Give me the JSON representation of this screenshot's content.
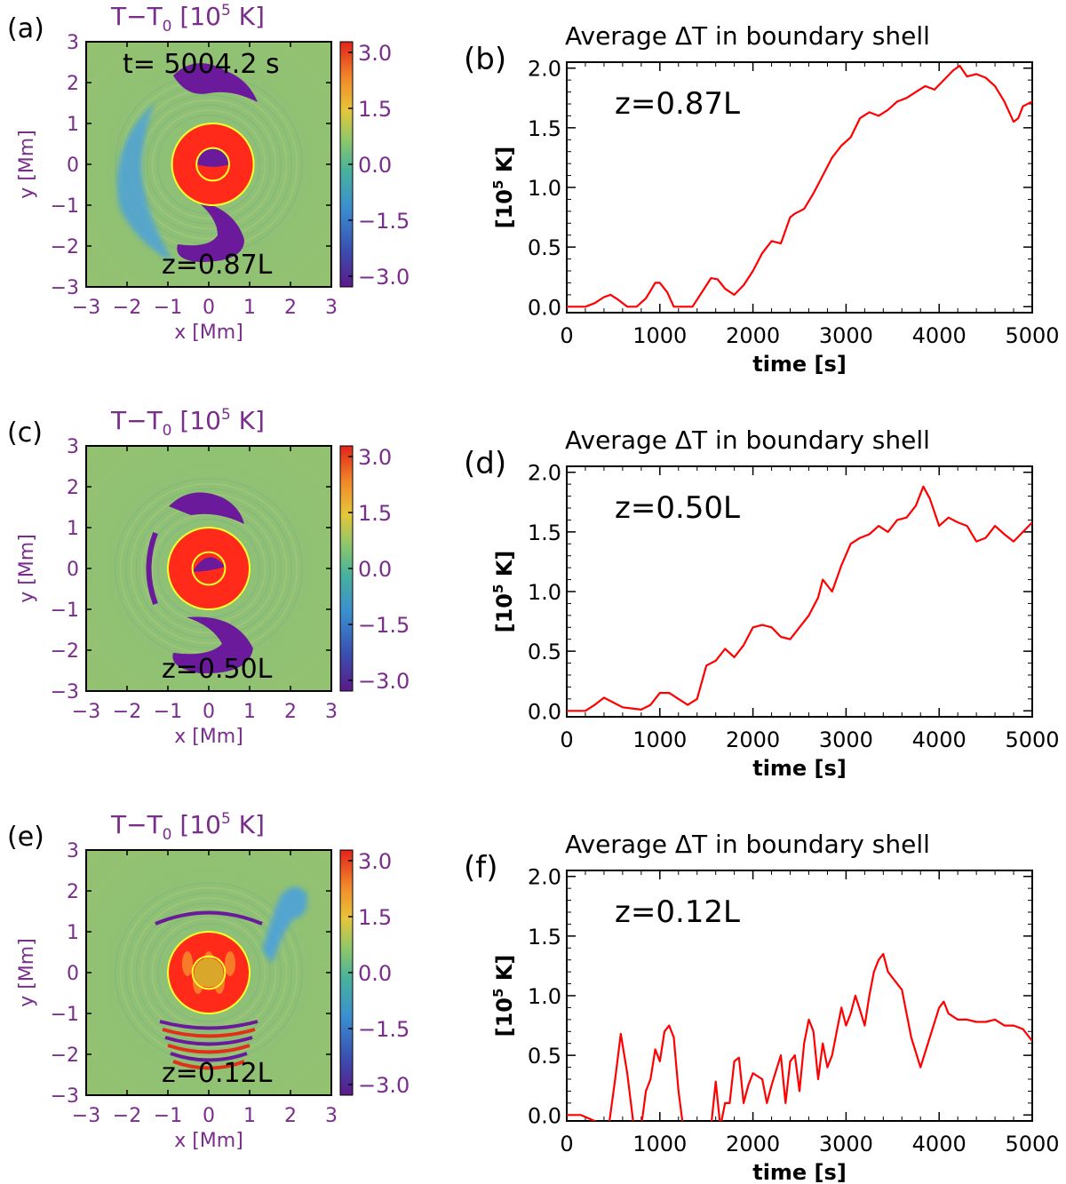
{
  "colors": {
    "axis_label": "#7a2e8c",
    "line": "#ff0000",
    "circle": "#ffff2a",
    "background_field": "#8fbf6f",
    "hot": "#ff2a1a",
    "cold": "#6a1a9a",
    "blue_feature": "#4aa0e0"
  },
  "chart_data": [
    {
      "panel": "(a)",
      "type": "heatmap",
      "title": "T−T₀ [10⁵ K]",
      "title_main": "T−T",
      "title_sub": "0",
      "title_unit_open": "[10",
      "title_unit_sup": "5",
      "title_unit_close": "K]",
      "time_label": "t=  5004.2 s",
      "z_label": "z=0.87L",
      "xlabel": "x [Mm]",
      "ylabel": "y [Mm]",
      "xlim": [
        -3,
        3
      ],
      "ylim": [
        -3,
        3
      ],
      "xticks": [
        -3,
        -2,
        -1,
        0,
        1,
        2,
        3
      ],
      "yticks": [
        -3,
        -2,
        -1,
        0,
        1,
        2,
        3
      ],
      "colorbar": {
        "range": [
          -3.0,
          3.0
        ],
        "ticks": [
          "3.0",
          "1.5",
          "0.0",
          "−1.5",
          "−3.0"
        ]
      },
      "circles_radius_mm": [
        1.0,
        0.4
      ],
      "circle_center_mm": [
        0.1,
        0.0
      ]
    },
    {
      "panel": "(b)",
      "type": "line",
      "title": "Average ΔT in boundary shell",
      "annotation": "z=0.87L",
      "xlabel": "time [s]",
      "ylabel": "[10⁵ K]",
      "ylabel_open": "[10",
      "ylabel_sup": "5",
      "ylabel_close": "K]",
      "xlim": [
        0,
        5000
      ],
      "ylim": [
        -0.05,
        2.05
      ],
      "xticks": [
        0,
        1000,
        2000,
        3000,
        4000,
        5000
      ],
      "yticks": [
        0.0,
        0.5,
        1.0,
        1.5,
        2.0
      ],
      "ytick_labels": [
        "0.0",
        "0.5",
        "1.0",
        "1.5",
        "2.0"
      ],
      "x": [
        0,
        200,
        300,
        400,
        470,
        550,
        650,
        750,
        850,
        950,
        1000,
        1080,
        1150,
        1250,
        1350,
        1450,
        1550,
        1620,
        1700,
        1800,
        1900,
        2000,
        2100,
        2200,
        2300,
        2400,
        2450,
        2550,
        2650,
        2750,
        2850,
        2950,
        3050,
        3150,
        3250,
        3350,
        3450,
        3550,
        3650,
        3750,
        3850,
        3950,
        4050,
        4150,
        4220,
        4300,
        4400,
        4500,
        4600,
        4700,
        4800,
        4850,
        4900,
        5000
      ],
      "y": [
        0.0,
        0.0,
        0.03,
        0.08,
        0.1,
        0.06,
        0.0,
        0.0,
        0.07,
        0.2,
        0.2,
        0.12,
        0.0,
        0.0,
        0.0,
        0.12,
        0.24,
        0.23,
        0.15,
        0.1,
        0.18,
        0.3,
        0.45,
        0.55,
        0.53,
        0.75,
        0.78,
        0.82,
        0.95,
        1.1,
        1.25,
        1.35,
        1.42,
        1.58,
        1.63,
        1.6,
        1.65,
        1.72,
        1.75,
        1.8,
        1.85,
        1.82,
        1.9,
        1.98,
        2.02,
        1.93,
        1.95,
        1.92,
        1.85,
        1.72,
        1.55,
        1.58,
        1.68,
        1.72
      ]
    },
    {
      "panel": "(c)",
      "type": "heatmap",
      "title": "T−T₀ [10⁵ K]",
      "title_main": "T−T",
      "title_sub": "0",
      "title_unit_open": "[10",
      "title_unit_sup": "5",
      "title_unit_close": "K]",
      "z_label": "z=0.50L",
      "xlabel": "x [Mm]",
      "ylabel": "y [Mm]",
      "xlim": [
        -3,
        3
      ],
      "ylim": [
        -3,
        3
      ],
      "xticks": [
        -3,
        -2,
        -1,
        0,
        1,
        2,
        3
      ],
      "yticks": [
        -3,
        -2,
        -1,
        0,
        1,
        2,
        3
      ],
      "colorbar": {
        "range": [
          -3.0,
          3.0
        ],
        "ticks": [
          "3.0",
          "1.5",
          "0.0",
          "−1.5",
          "−3.0"
        ]
      },
      "circles_radius_mm": [
        1.0,
        0.4
      ],
      "circle_center_mm": [
        0.0,
        0.0
      ]
    },
    {
      "panel": "(d)",
      "type": "line",
      "title": "Average ΔT in boundary shell",
      "annotation": "z=0.50L",
      "xlabel": "time [s]",
      "ylabel": "[10⁵ K]",
      "ylabel_open": "[10",
      "ylabel_sup": "5",
      "ylabel_close": "K]",
      "xlim": [
        0,
        5000
      ],
      "ylim": [
        -0.05,
        2.05
      ],
      "xticks": [
        0,
        1000,
        2000,
        3000,
        4000,
        5000
      ],
      "yticks": [
        0.0,
        0.5,
        1.0,
        1.5,
        2.0
      ],
      "ytick_labels": [
        "0.0",
        "0.5",
        "1.0",
        "1.5",
        "2.0"
      ],
      "x": [
        0,
        200,
        300,
        400,
        500,
        600,
        700,
        800,
        900,
        1000,
        1100,
        1200,
        1300,
        1400,
        1500,
        1600,
        1700,
        1800,
        1900,
        2000,
        2100,
        2200,
        2300,
        2400,
        2500,
        2600,
        2700,
        2750,
        2850,
        2950,
        3050,
        3150,
        3250,
        3350,
        3450,
        3550,
        3650,
        3750,
        3830,
        3900,
        4000,
        4100,
        4200,
        4300,
        4400,
        4500,
        4600,
        4700,
        4800,
        4900,
        5000
      ],
      "y": [
        0.0,
        0.0,
        0.05,
        0.11,
        0.07,
        0.03,
        0.02,
        0.01,
        0.05,
        0.15,
        0.15,
        0.1,
        0.05,
        0.1,
        0.38,
        0.42,
        0.52,
        0.45,
        0.55,
        0.7,
        0.72,
        0.7,
        0.62,
        0.6,
        0.7,
        0.8,
        0.95,
        1.1,
        1.0,
        1.22,
        1.4,
        1.45,
        1.48,
        1.55,
        1.5,
        1.6,
        1.62,
        1.72,
        1.88,
        1.78,
        1.55,
        1.62,
        1.58,
        1.55,
        1.42,
        1.45,
        1.55,
        1.48,
        1.42,
        1.5,
        1.58
      ]
    },
    {
      "panel": "(e)",
      "type": "heatmap",
      "title": "T−T₀ [10⁵ K]",
      "title_main": "T−T",
      "title_sub": "0",
      "title_unit_open": "[10",
      "title_unit_sup": "5",
      "title_unit_close": "K]",
      "z_label": "z=0.12L",
      "xlabel": "x [Mm]",
      "ylabel": "y [Mm]",
      "xlim": [
        -3,
        3
      ],
      "ylim": [
        -3,
        3
      ],
      "xticks": [
        -3,
        -2,
        -1,
        0,
        1,
        2,
        3
      ],
      "yticks": [
        -3,
        -2,
        -1,
        0,
        1,
        2,
        3
      ],
      "colorbar": {
        "range": [
          -3.0,
          3.0
        ],
        "ticks": [
          "3.0",
          "1.5",
          "0.0",
          "−1.5",
          "−3.0"
        ]
      },
      "circles_radius_mm": [
        1.0,
        0.4
      ],
      "circle_center_mm": [
        0.0,
        0.0
      ]
    },
    {
      "panel": "(f)",
      "type": "line",
      "title": "Average ΔT in boundary shell",
      "annotation": "z=0.12L",
      "xlabel": "time [s]",
      "ylabel": "[10⁵ K]",
      "ylabel_open": "[10",
      "ylabel_sup": "5",
      "ylabel_close": "K]",
      "xlim": [
        0,
        5000
      ],
      "ylim": [
        -0.05,
        2.05
      ],
      "xticks": [
        0,
        1000,
        2000,
        3000,
        4000,
        5000
      ],
      "yticks": [
        0.0,
        0.5,
        1.0,
        1.5,
        2.0
      ],
      "ytick_labels": [
        "0.0",
        "0.5",
        "1.0",
        "1.5",
        "2.0"
      ],
      "x": [
        0,
        150,
        450,
        520,
        580,
        650,
        720,
        800,
        850,
        900,
        950,
        1000,
        1050,
        1100,
        1150,
        1200,
        1250,
        1300,
        1550,
        1600,
        1650,
        1700,
        1750,
        1800,
        1850,
        1900,
        1950,
        2000,
        2100,
        2150,
        2200,
        2300,
        2350,
        2400,
        2450,
        2500,
        2550,
        2600,
        2650,
        2700,
        2750,
        2800,
        2850,
        2900,
        2950,
        3000,
        3050,
        3100,
        3150,
        3200,
        3250,
        3300,
        3350,
        3400,
        3450,
        3500,
        3600,
        3700,
        3800,
        3900,
        4000,
        4050,
        4100,
        4200,
        4300,
        4400,
        4500,
        4600,
        4700,
        4800,
        4900,
        5000
      ],
      "y": [
        0.0,
        0.0,
        -0.1,
        0.3,
        0.68,
        0.35,
        -0.1,
        -0.1,
        0.2,
        0.3,
        0.55,
        0.45,
        0.7,
        0.75,
        0.65,
        0.2,
        -0.1,
        -0.1,
        -0.1,
        0.28,
        -0.1,
        0.1,
        0.1,
        0.45,
        0.48,
        0.1,
        0.25,
        0.35,
        0.3,
        0.1,
        0.25,
        0.5,
        0.1,
        0.45,
        0.5,
        0.2,
        0.6,
        0.8,
        0.7,
        0.3,
        0.6,
        0.4,
        0.5,
        0.7,
        0.9,
        0.75,
        0.85,
        1.0,
        0.88,
        0.75,
        1.0,
        1.2,
        1.3,
        1.35,
        1.2,
        1.15,
        1.05,
        0.65,
        0.4,
        0.65,
        0.9,
        0.95,
        0.85,
        0.8,
        0.8,
        0.78,
        0.78,
        0.8,
        0.75,
        0.75,
        0.72,
        0.62
      ]
    }
  ]
}
